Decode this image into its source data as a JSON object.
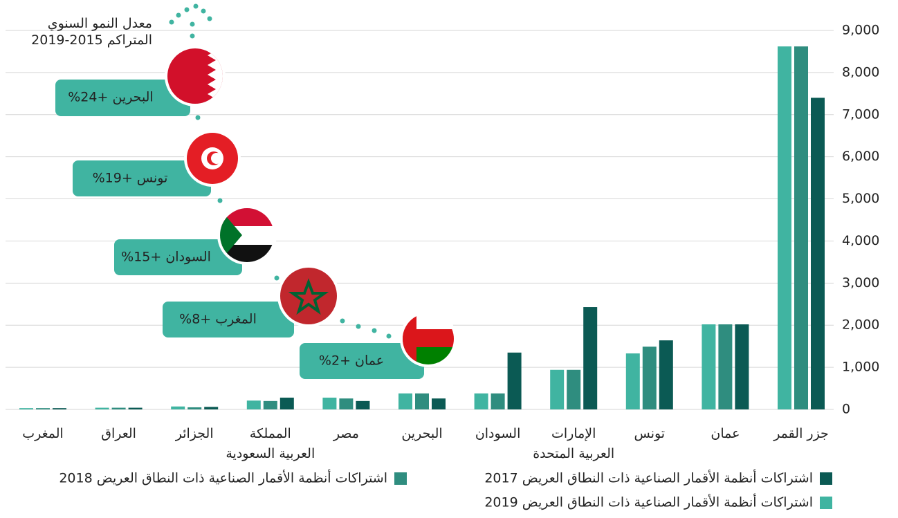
{
  "chart_data": {
    "type": "bar",
    "title": "معدل النمو السنوي المتراكم 2015-2019",
    "categories": [
      "جزر القمر",
      "عمان",
      "تونس",
      "الإمارات\nالعربية المتحدة",
      "السودان",
      "البحرين",
      "مصر",
      "المملكة\nالعربية السعودية",
      "الجزائر",
      "العراق",
      "المغرب"
    ],
    "series": [
      {
        "name": "اشتراكات أنظمة الأقمار الصناعية ذات النطاق العريض 2017",
        "color": "#0b5a54",
        "values": [
          7400,
          2020,
          1640,
          2430,
          1350,
          260,
          200,
          280,
          60,
          40,
          30
        ]
      },
      {
        "name": "اشتراكات أنظمة الأقمار الصناعية ذات النطاق العريض 2018",
        "color": "#2f8d7f",
        "values": [
          8620,
          2020,
          1490,
          940,
          380,
          380,
          260,
          200,
          50,
          40,
          30
        ]
      },
      {
        "name": "اشتراكات أنظمة الأقمار الصناعية ذات النطاق العريض 2019",
        "color": "#40b4a1",
        "values": [
          8620,
          2020,
          1330,
          940,
          380,
          380,
          280,
          210,
          70,
          40,
          30
        ]
      }
    ],
    "ylim": [
      0,
      9000
    ],
    "yticks": [
      0,
      {
        "value": 1000,
        "label": "1,000"
      },
      {
        "value": 2000,
        "label": "2,000"
      },
      {
        "value": 3000,
        "label": "3,000"
      },
      {
        "value": 4000,
        "label": "4,000"
      },
      {
        "value": 5000,
        "label": "5,000"
      },
      {
        "value": 6000,
        "label": "6,000"
      },
      {
        "value": 7000,
        "label": "7,000"
      },
      {
        "value": 8000,
        "label": "8,000"
      },
      {
        "value": 9000,
        "label": "9,000"
      }
    ],
    "grid": true,
    "annotations": [
      "البحرين +24%",
      "تونس +19%",
      "السودان +15%",
      "المغرب +8%",
      "عمان +2%"
    ]
  }
}
